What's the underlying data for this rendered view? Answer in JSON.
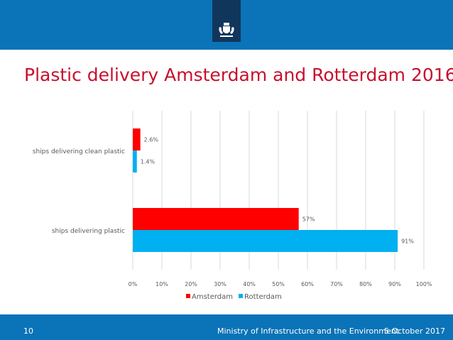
{
  "slide": {
    "title": "Plastic delivery Amsterdam and Rotterdam 2016",
    "page_number": "10",
    "organization": "Ministry of Infrastructure and the Environment",
    "date": "5 October 2017",
    "emblem_icon": "coat-of-arms-icon"
  },
  "colors": {
    "header_blue": "#0b73b7",
    "emblem_navy": "#11365c",
    "title_red": "#c8102e",
    "amsterdam": "#ff0000",
    "rotterdam": "#00b0f0",
    "grid": "#d9d9d9",
    "text_gray": "#595959"
  },
  "chart_data": {
    "type": "bar",
    "orientation": "horizontal",
    "categories": [
      "ships delivering clean plastic",
      "ships delivering plastic"
    ],
    "series": [
      {
        "name": "Amsterdam",
        "values": [
          2.6,
          57
        ],
        "labels": [
          "2.6%",
          "57%"
        ]
      },
      {
        "name": "Rotterdam",
        "values": [
          1.4,
          91
        ],
        "labels": [
          "1.4%",
          "91%"
        ]
      }
    ],
    "xlim": [
      0,
      100
    ],
    "x_ticks": [
      "0%",
      "10%",
      "20%",
      "30%",
      "40%",
      "50%",
      "60%",
      "70%",
      "80%",
      "90%",
      "100%"
    ],
    "grid": true,
    "legend_position": "bottom"
  }
}
